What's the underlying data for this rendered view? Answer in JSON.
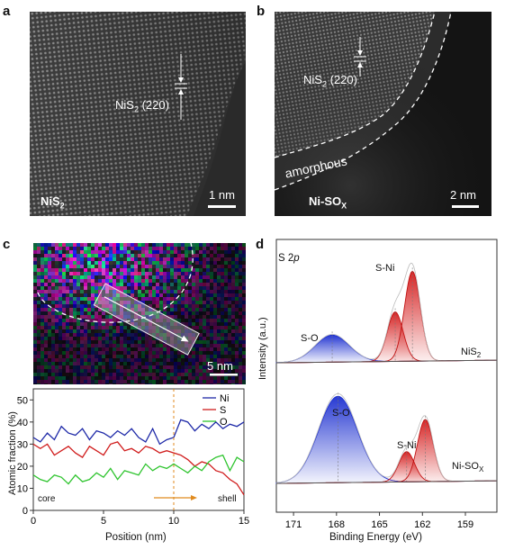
{
  "panels": {
    "a": {
      "label": "a",
      "material_main": "NiS",
      "material_sub": "2",
      "plane_main": "NiS",
      "plane_sub": "2",
      "plane_hkl": " (220)",
      "scale": "1 nm"
    },
    "b": {
      "label": "b",
      "material_main": "Ni-SO",
      "material_sub": "X",
      "plane_main": "NiS",
      "plane_sub": "2",
      "plane_hkl": " (220)",
      "region": "amorphous",
      "scale": "2 nm"
    },
    "c": {
      "label": "c",
      "scale": "5 nm",
      "core": "core",
      "shell": "shell"
    },
    "d": {
      "label": "d",
      "title_main": "S 2",
      "title_ital": "p",
      "peak1": "S-O",
      "peak2": "S-Ni",
      "peak3": "S-O",
      "peak4": "S-Ni",
      "trace1": "NiS",
      "trace1_sub": "2",
      "trace2": "Ni-SO",
      "trace2_sub": "X"
    }
  },
  "chart_data": [
    {
      "type": "line",
      "xlabel": "Position (nm)",
      "ylabel": "Atomic fraction (%)",
      "xlim": [
        0,
        15
      ],
      "ylim": [
        0,
        55
      ],
      "xticks": [
        "0",
        "5",
        "10",
        "15"
      ],
      "yticks": [
        "0",
        "10",
        "20",
        "30",
        "40",
        "50"
      ],
      "colors": {
        "Ni": "#1f2aa8",
        "S": "#d01c1c",
        "O": "#2ec42e"
      },
      "x": [
        0,
        0.5,
        1,
        1.5,
        2,
        2.5,
        3,
        3.5,
        4,
        4.5,
        5,
        5.5,
        6,
        6.5,
        7,
        7.5,
        8,
        8.5,
        9,
        9.5,
        10,
        10.5,
        11,
        11.5,
        12,
        12.5,
        13,
        13.5,
        14,
        14.5,
        15
      ],
      "series": [
        {
          "name": "Ni",
          "values": [
            33,
            31,
            35,
            32,
            38,
            35,
            34,
            37,
            32,
            36,
            35,
            33,
            36,
            34,
            37,
            33,
            31,
            37,
            30,
            32,
            33,
            41,
            40,
            36,
            39,
            37,
            40,
            37,
            39,
            38,
            40
          ]
        },
        {
          "name": "S",
          "values": [
            30,
            28,
            30,
            25,
            27,
            29,
            26,
            24,
            29,
            27,
            25,
            30,
            31,
            27,
            28,
            26,
            29,
            28,
            26,
            27,
            26,
            25,
            23,
            20,
            22,
            21,
            18,
            17,
            14,
            12,
            7
          ]
        },
        {
          "name": "O",
          "values": [
            16,
            14,
            13,
            16,
            15,
            12,
            16,
            13,
            14,
            17,
            15,
            19,
            14,
            18,
            17,
            16,
            21,
            18,
            20,
            19,
            21,
            19,
            17,
            20,
            18,
            22,
            24,
            25,
            18,
            24,
            22
          ]
        }
      ],
      "annotation": {
        "x": 10,
        "from": "core",
        "to": "shell"
      }
    },
    {
      "type": "line",
      "xlabel": "Binding Energy (eV)",
      "ylabel": "Intensity (a.u.)",
      "xlim": [
        172.2,
        156.8
      ],
      "reversed_x": true,
      "xticks": [
        "171",
        "168",
        "165",
        "162",
        "159"
      ],
      "series": [
        {
          "name": "NiS2",
          "peaks": [
            {
              "label": "S-O",
              "center": 168.3,
              "height": 0.3,
              "width": 1.2
            },
            {
              "label": "S-Ni",
              "center": 163.9,
              "height": 0.55
            },
            {
              "label": "S-Ni",
              "center": 162.7,
              "height": 1.0
            }
          ]
        },
        {
          "name": "Ni-SOx",
          "peaks": [
            {
              "label": "S-O",
              "center": 167.9,
              "height": 1.0,
              "width": 1.35
            },
            {
              "label": "S-Ni",
              "center": 163.1,
              "height": 0.35
            },
            {
              "label": "S-Ni",
              "center": 161.8,
              "height": 0.72
            }
          ]
        }
      ]
    }
  ]
}
